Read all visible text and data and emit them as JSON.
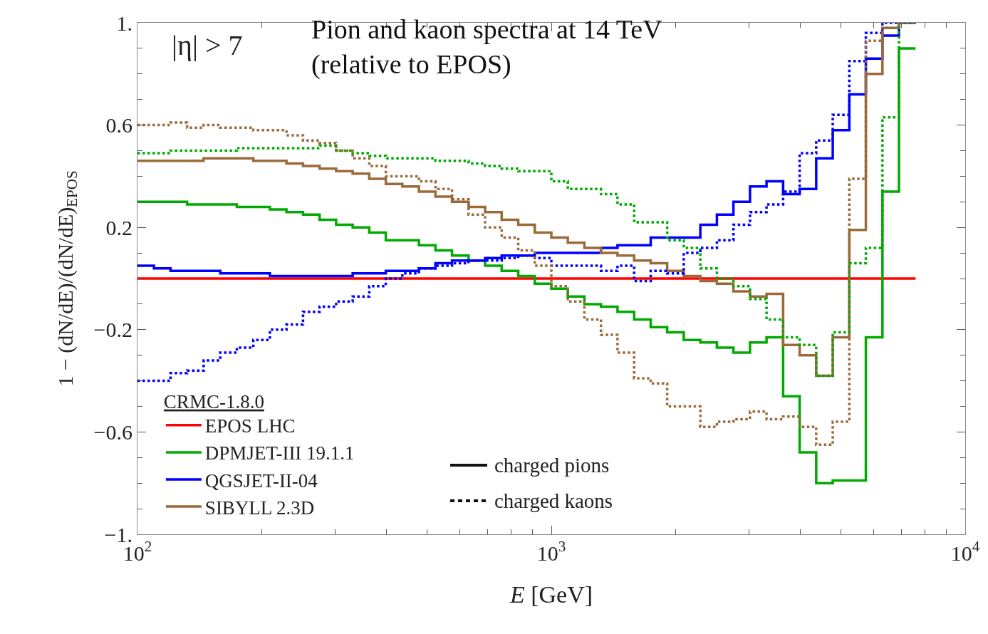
{
  "chart_data": {
    "type": "step",
    "title": "Pion and kaon spectra at 14 TeV\n(relative to EPOS)",
    "xlabel": "E [GeV]",
    "ylabel": "1 − (dN/dE)/(dN/dE)$_{EPOS}$",
    "legend_title": "CRMC-1.8.0",
    "annotations": [
      "|η| > 7",
      "charged pions",
      "charged kaons"
    ],
    "x": [
      100,
      109.6,
      120.2,
      131.8,
      144.5,
      158.5,
      173.8,
      190.5,
      208.9,
      229.1,
      251.2,
      275.4,
      302,
      331.1,
      363.1,
      398.1,
      436.5,
      478.6,
      524.8,
      575.4,
      631,
      691.8,
      758.6,
      831.8,
      912,
      1000,
      1096,
      1202,
      1318,
      1445,
      1585,
      1738,
      1905,
      2089,
      2291,
      2512,
      2754,
      3020,
      3311,
      3631,
      3981,
      4365,
      4786,
      5248,
      5754,
      6310,
      6918,
      7586
    ],
    "series": [
      {
        "name": "EPOS LHC",
        "color": "#ff0000",
        "line_style": "solid",
        "x": [
          100,
          7586
        ],
        "values": [
          0,
          0
        ]
      },
      {
        "name": "DPMJET-III 19.1.1",
        "color": "#00aa00",
        "line_style": "solid",
        "values": [
          0.3,
          0.3,
          0.3,
          0.29,
          0.29,
          0.29,
          0.28,
          0.28,
          0.27,
          0.26,
          0.25,
          0.23,
          0.21,
          0.2,
          0.18,
          0.15,
          0.15,
          0.13,
          0.11,
          0.09,
          0.07,
          0.05,
          0.03,
          0.01,
          -0.02,
          -0.04,
          -0.07,
          -0.1,
          -0.11,
          -0.13,
          -0.16,
          -0.19,
          -0.21,
          -0.24,
          -0.25,
          -0.27,
          -0.29,
          -0.25,
          -0.23,
          -0.46,
          -0.68,
          -0.8,
          -0.79,
          -0.79,
          -0.23,
          0.34,
          0.9,
          0.9
        ]
      },
      {
        "name": "QGSJET-II-04",
        "color": "#0000ff",
        "line_style": "solid",
        "values": [
          0.05,
          0.04,
          0.03,
          0.03,
          0.03,
          0.02,
          0.02,
          0.02,
          0.01,
          0.01,
          0.01,
          0.01,
          0.01,
          0.02,
          0.02,
          0.03,
          0.03,
          0.04,
          0.06,
          0.07,
          0.07,
          0.08,
          0.09,
          0.09,
          0.1,
          0.1,
          0.1,
          0.1,
          0.12,
          0.13,
          0.13,
          0.16,
          0.16,
          0.16,
          0.21,
          0.25,
          0.3,
          0.36,
          0.38,
          0.33,
          0.35,
          0.47,
          0.58,
          0.72,
          0.86,
          0.95,
          1.0,
          1.0
        ]
      },
      {
        "name": "SIBYLL 2.3D",
        "color": "#9b6a3a",
        "line_style": "solid",
        "values": [
          0.46,
          0.46,
          0.46,
          0.46,
          0.47,
          0.47,
          0.47,
          0.46,
          0.46,
          0.45,
          0.44,
          0.43,
          0.42,
          0.41,
          0.39,
          0.37,
          0.36,
          0.34,
          0.32,
          0.3,
          0.28,
          0.26,
          0.23,
          0.21,
          0.18,
          0.16,
          0.14,
          0.12,
          0.1,
          0.09,
          0.07,
          0.06,
          0.03,
          0.01,
          -0.01,
          -0.02,
          -0.05,
          -0.07,
          -0.06,
          -0.26,
          -0.3,
          -0.38,
          -0.23,
          0.19,
          0.8,
          0.98,
          1.0,
          1.0
        ]
      },
      {
        "color": "#00aa00",
        "line_style": "dotted",
        "values": [
          0.49,
          0.49,
          0.5,
          0.5,
          0.5,
          0.5,
          0.51,
          0.51,
          0.51,
          0.51,
          0.51,
          0.52,
          0.5,
          0.49,
          0.48,
          0.47,
          0.47,
          0.47,
          0.46,
          0.46,
          0.45,
          0.44,
          0.43,
          0.42,
          0.42,
          0.38,
          0.35,
          0.35,
          0.33,
          0.29,
          0.22,
          0.22,
          0.15,
          0.12,
          0.04,
          0.0,
          -0.03,
          -0.08,
          -0.16,
          -0.23,
          -0.26,
          -0.38,
          -0.21,
          0.06,
          0.12,
          0.63,
          1.0,
          1.0
        ]
      },
      {
        "color": "#0000ff",
        "line_style": "dotted",
        "values": [
          -0.4,
          -0.4,
          -0.37,
          -0.36,
          -0.32,
          -0.29,
          -0.27,
          -0.24,
          -0.2,
          -0.18,
          -0.13,
          -0.11,
          -0.09,
          -0.07,
          -0.03,
          0.0,
          0.02,
          0.04,
          0.05,
          0.06,
          0.07,
          0.07,
          0.08,
          0.09,
          0.08,
          0.05,
          0.05,
          0.05,
          0.03,
          0.05,
          -0.01,
          0.03,
          0.02,
          0.1,
          0.12,
          0.15,
          0.21,
          0.26,
          0.29,
          0.34,
          0.49,
          0.54,
          0.64,
          0.85,
          0.96,
          1.0,
          1.0,
          1.0
        ]
      },
      {
        "color": "#9b6a3a",
        "line_style": "dotted",
        "values": [
          0.6,
          0.6,
          0.61,
          0.59,
          0.6,
          0.59,
          0.59,
          0.58,
          0.58,
          0.56,
          0.54,
          0.53,
          0.5,
          0.47,
          0.44,
          0.4,
          0.4,
          0.38,
          0.35,
          0.31,
          0.25,
          0.2,
          0.16,
          0.11,
          0.05,
          -0.03,
          -0.09,
          -0.16,
          -0.22,
          -0.29,
          -0.39,
          -0.41,
          -0.5,
          -0.5,
          -0.58,
          -0.56,
          -0.55,
          -0.52,
          -0.55,
          -0.54,
          -0.58,
          -0.65,
          -0.56,
          0.39,
          0.93,
          0.98,
          1.0,
          1.0
        ]
      }
    ],
    "log": "x",
    "xlim": [
      100,
      10000
    ],
    "xticks": [
      {
        "value": 100,
        "label": "10$^{2}$"
      },
      {
        "value": 1000,
        "label": "10$^{3}$"
      },
      {
        "value": 10000,
        "label": "10$^{4}$"
      }
    ],
    "ylim": [
      -1,
      1
    ],
    "yticks": [
      {
        "value": -1,
        "label": "−1."
      },
      {
        "value": -0.6,
        "label": "−0.6"
      },
      {
        "value": -0.2,
        "label": "−0.2"
      },
      {
        "value": 0.2,
        "label": "0.2"
      },
      {
        "value": 0.6,
        "label": "0.6"
      },
      {
        "value": 1,
        "label": "1."
      }
    ],
    "grid": false,
    "legend": "bottom left"
  }
}
